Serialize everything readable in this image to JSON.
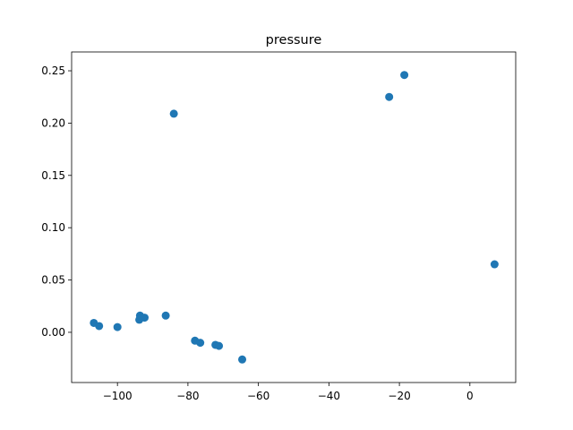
{
  "chart_data": {
    "type": "scatter",
    "title": "pressure",
    "xlabel": "",
    "ylabel": "",
    "xlim": [
      -113,
      13
    ],
    "ylim": [
      -0.048,
      0.268
    ],
    "xticks": [
      -100,
      -80,
      -60,
      -40,
      -20,
      0
    ],
    "xtick_labels": [
      "−100",
      "−80",
      "−60",
      "−40",
      "−20",
      "0"
    ],
    "yticks": [
      0.0,
      0.05,
      0.1,
      0.15,
      0.2,
      0.25
    ],
    "ytick_labels": [
      "0.00",
      "0.05",
      "0.10",
      "0.15",
      "0.20",
      "0.25"
    ],
    "grid": false,
    "color": "#1f77b4",
    "points": [
      {
        "x": -106.7,
        "y": 0.009
      },
      {
        "x": -105.2,
        "y": 0.006
      },
      {
        "x": -100.0,
        "y": 0.005
      },
      {
        "x": -93.8,
        "y": 0.012
      },
      {
        "x": -93.6,
        "y": 0.016
      },
      {
        "x": -92.3,
        "y": 0.014
      },
      {
        "x": -86.3,
        "y": 0.016
      },
      {
        "x": -84.0,
        "y": 0.209
      },
      {
        "x": -78.0,
        "y": -0.008
      },
      {
        "x": -76.5,
        "y": -0.01
      },
      {
        "x": -72.2,
        "y": -0.012
      },
      {
        "x": -71.2,
        "y": -0.013
      },
      {
        "x": -64.6,
        "y": -0.026
      },
      {
        "x": -22.9,
        "y": 0.225
      },
      {
        "x": -18.6,
        "y": 0.246
      },
      {
        "x": 7.0,
        "y": 0.065
      }
    ]
  }
}
